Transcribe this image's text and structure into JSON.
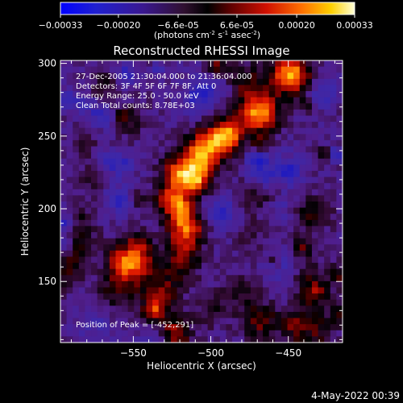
{
  "colorbar": {
    "ticks": [
      "-0.00033",
      "-0.00020",
      "-6.6e-05",
      "6.6e-05",
      "0.00020",
      "0.00033"
    ],
    "units_main": "(photons cm",
    "units_exp1": "-2",
    "units_mid": " s",
    "units_exp2": "-1",
    "units_end": " asec",
    "units_exp3": "-2",
    "units_close": ")"
  },
  "chart_data": {
    "type": "heatmap",
    "title": "Reconstructed RHESSI Image",
    "xlabel": "Heliocentric X (arcsec)",
    "ylabel": "Heliocentric Y (arcsec)",
    "xlim": [
      -597,
      -415
    ],
    "ylim": [
      108,
      302
    ],
    "x_ticks": [
      -550,
      -500,
      -450
    ],
    "y_ticks": [
      150,
      200,
      250,
      300
    ],
    "x_tick_labels": [
      "−550",
      "−500",
      "−450"
    ],
    "y_tick_labels": [
      "150",
      "200",
      "250",
      "300"
    ],
    "color_range": [
      -0.00033,
      0.00033
    ],
    "colormap": "rhessi-blue-black-red-yellow-white",
    "peak": [
      -452,
      291
    ],
    "annotations": [
      "27-Dec-2005 21:30:04.000 to 21:36:04.000",
      "Detectors: 3F 4F 5F 6F 7F 8F, Att 0",
      "Energy Range: 25.0 - 50.0 keV",
      "Clean     Total counts: 8.78E+03"
    ],
    "peak_label": "Position of Peak = [-452,291]"
  },
  "footer": {
    "date": "4-May-2022 00:39"
  }
}
